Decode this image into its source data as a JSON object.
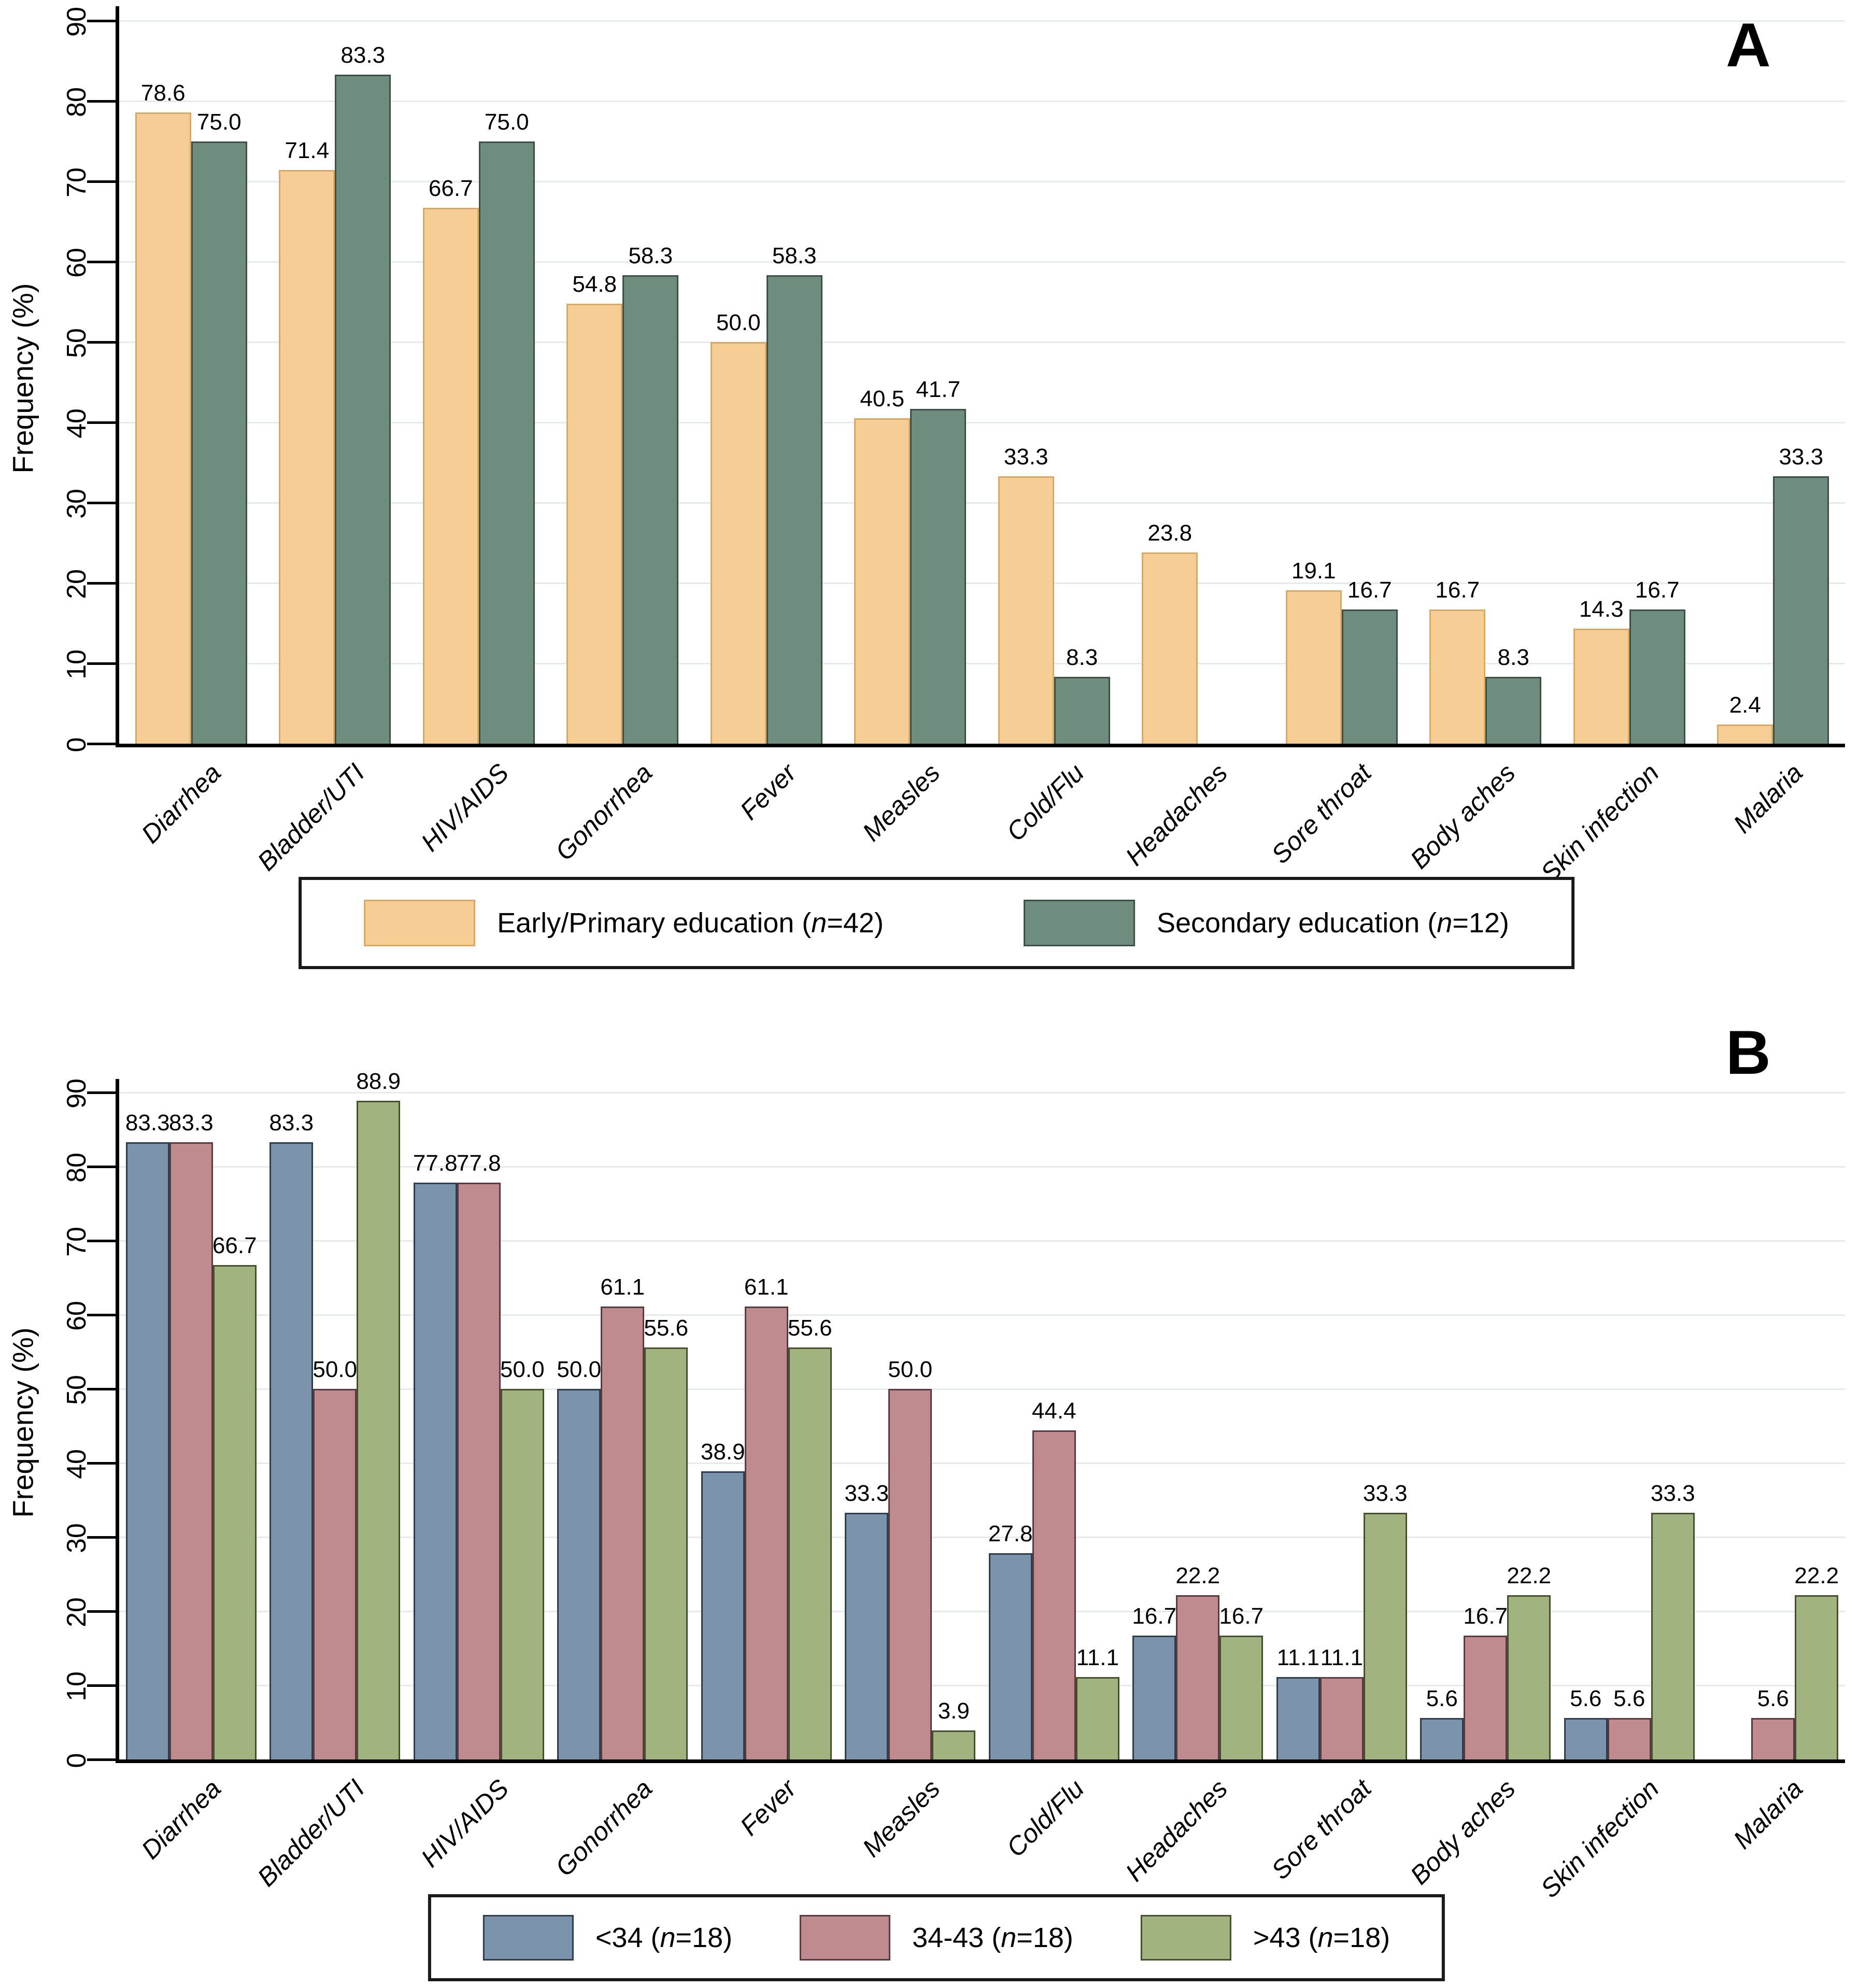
{
  "chart_data": [
    {
      "type": "bar",
      "panel_label": "A",
      "ylabel": "Frequency (%)",
      "xlabel": "",
      "ylim": [
        0,
        95
      ],
      "yticks": [
        0,
        10,
        20,
        30,
        40,
        50,
        60,
        70,
        80,
        90
      ],
      "grid": true,
      "legend_position": "bottom-center",
      "categories": [
        "Diarrhea",
        "Bladder/UTI",
        "HIV/AIDS",
        "Gonorrhea",
        "Fever",
        "Measles",
        "Cold/Flu",
        "Headaches",
        "Sore throat",
        "Body aches",
        "Skin infection",
        "Malaria"
      ],
      "series": [
        {
          "name": "Early/Primary education (n=42)",
          "color": "#F6CD94",
          "border_color": "#D8A865",
          "values": [
            78.6,
            71.4,
            66.7,
            54.8,
            50.0,
            40.5,
            33.3,
            23.8,
            19.1,
            16.7,
            14.3,
            2.4
          ]
        },
        {
          "name": "Secondary education (n=12)",
          "color": "#6F8D7E",
          "border_color": "#3D5048",
          "values": [
            75.0,
            83.3,
            75.0,
            58.3,
            58.3,
            41.7,
            8.3,
            null,
            16.7,
            8.3,
            16.7,
            33.3
          ]
        }
      ]
    },
    {
      "type": "bar",
      "panel_label": "B",
      "ylabel": "Frequency (%)",
      "xlabel": "",
      "ylim": [
        0,
        95
      ],
      "yticks": [
        0,
        10,
        20,
        30,
        40,
        50,
        60,
        70,
        80,
        90
      ],
      "grid": true,
      "legend_position": "bottom-center",
      "categories": [
        "Diarrhea",
        "Bladder/UTI",
        "HIV/AIDS",
        "Gonorrhea",
        "Fever",
        "Measles",
        "Cold/Flu",
        "Headaches",
        "Sore throat",
        "Body aches",
        "Skin infection",
        "Malaria"
      ],
      "series": [
        {
          "name": "<34 (n=18)",
          "color": "#7B93AB",
          "border_color": "#2E3D4D",
          "values": [
            83.3,
            83.3,
            77.8,
            50.0,
            38.9,
            33.3,
            27.8,
            16.7,
            11.1,
            5.6,
            5.6,
            null
          ]
        },
        {
          "name": "34-43 (n=18)",
          "color": "#C08B8E",
          "border_color": "#5A3A3E",
          "values": [
            83.3,
            50.0,
            77.8,
            61.1,
            61.1,
            50.0,
            44.4,
            22.2,
            11.1,
            16.7,
            5.6,
            5.6
          ]
        },
        {
          "name": ">43 (n=18)",
          "color": "#A1B37E",
          "border_color": "#46502F",
          "values": [
            66.7,
            88.9,
            50.0,
            55.6,
            55.6,
            3.9,
            11.1,
            16.7,
            33.3,
            22.2,
            33.3,
            22.2
          ]
        }
      ]
    }
  ]
}
